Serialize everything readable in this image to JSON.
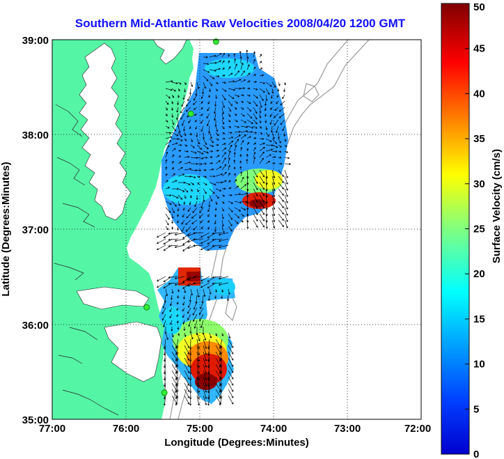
{
  "figure": {
    "title": "Southern Mid-Atlantic Raw Velocities 2008/04/20 1200 GMT",
    "xlabel": "Longitude (Degrees:Minutes)",
    "ylabel": "Latitude (Degrees:Minutes)",
    "x_ticks": [
      "77:00",
      "76:00",
      "75:00",
      "74:00",
      "73:00",
      "72:00"
    ],
    "y_ticks": [
      "39:00",
      "38:00",
      "37:00",
      "36:00",
      "35:00"
    ],
    "x_range_west_deg": [
      77,
      72
    ],
    "y_range_north_deg": [
      35,
      39
    ]
  },
  "colorbar": {
    "label": "Surface Velocity (cm/s)",
    "ticks": [
      "50",
      "45",
      "40",
      "35",
      "30",
      "25",
      "20",
      "15",
      "10",
      "5",
      "0"
    ],
    "range": [
      0,
      50
    ]
  },
  "colors": {
    "land": "#55f5a6",
    "water": "#ffffff",
    "bathymetry": "#9a9a9a",
    "station": "#33ee33",
    "title": "#1010ff"
  },
  "stations": [
    {
      "lon": 74.78,
      "lat": 38.98
    },
    {
      "lon": 75.12,
      "lat": 38.22
    },
    {
      "lon": 75.72,
      "lat": 36.18
    },
    {
      "lon": 75.48,
      "lat": 35.28
    }
  ]
}
